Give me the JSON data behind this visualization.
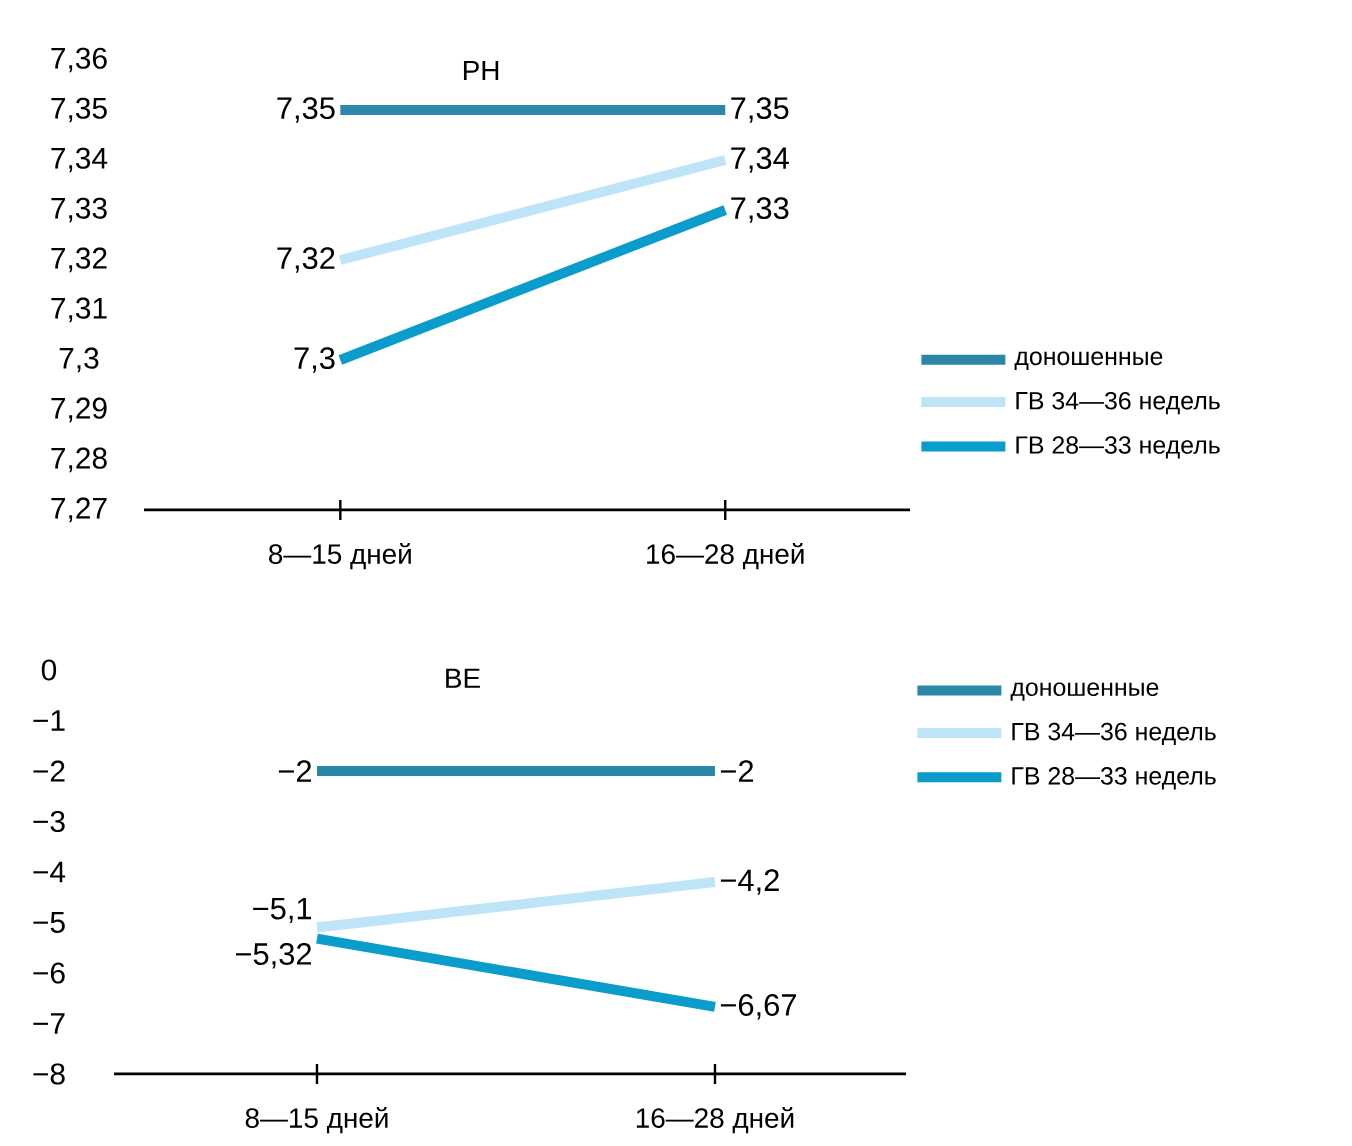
{
  "chart_data": [
    {
      "type": "line",
      "title": "PH",
      "categories": [
        "8—15 дней",
        "16—28 дней"
      ],
      "series": [
        {
          "name": "доношенные",
          "color": "#2b87a8",
          "values": [
            7.35,
            7.35
          ],
          "value_labels": [
            "7,35",
            "7,35"
          ]
        },
        {
          "name": "ГВ 34—36 недель",
          "color": "#bde4f7",
          "values": [
            7.32,
            7.34
          ],
          "value_labels": [
            "7,32",
            "7,34"
          ]
        },
        {
          "name": "ГВ 28—33 недель",
          "color": "#0a9dcc",
          "values": [
            7.3,
            7.33
          ],
          "value_labels": [
            "7,3",
            "7,33"
          ]
        }
      ],
      "ylim": [
        7.27,
        7.36
      ],
      "yticks": [
        {
          "value": 7.27,
          "label": "7,27"
        },
        {
          "value": 7.28,
          "label": "7,28"
        },
        {
          "value": 7.29,
          "label": "7,29"
        },
        {
          "value": 7.3,
          "label": "7,3"
        },
        {
          "value": 7.31,
          "label": "7,31"
        },
        {
          "value": 7.32,
          "label": "7,32"
        },
        {
          "value": 7.33,
          "label": "7,33"
        },
        {
          "value": 7.34,
          "label": "7,34"
        },
        {
          "value": 7.35,
          "label": "7,35"
        },
        {
          "value": 7.36,
          "label": "7,36"
        }
      ],
      "legend": "bottom right",
      "grid": false,
      "marker": "none"
    },
    {
      "type": "line",
      "title": "BE",
      "categories": [
        "8—15 дней",
        "16—28 дней"
      ],
      "series": [
        {
          "name": "доношенные",
          "color": "#2b87a8",
          "values": [
            -2,
            -2
          ],
          "value_labels": [
            "−2",
            "−2"
          ]
        },
        {
          "name": "ГВ 34—36 недель",
          "color": "#bde4f7",
          "values": [
            -5.1,
            -4.2
          ],
          "value_labels": [
            "−5,1",
            "−4,2"
          ]
        },
        {
          "name": "ГВ 28—33 недель",
          "color": "#0a9dcc",
          "values": [
            -5.32,
            -6.67
          ],
          "value_labels": [
            "−5,32",
            "−6,67"
          ]
        }
      ],
      "ylim": [
        -8,
        0
      ],
      "yticks": [
        {
          "value": 0,
          "label": "0"
        },
        {
          "value": -1,
          "label": "−1"
        },
        {
          "value": -2,
          "label": "−2"
        },
        {
          "value": -3,
          "label": "−3"
        },
        {
          "value": -4,
          "label": "−4"
        },
        {
          "value": -5,
          "label": "−5"
        },
        {
          "value": -6,
          "label": "−6"
        },
        {
          "value": -7,
          "label": "−7"
        },
        {
          "value": -8,
          "label": "−8"
        }
      ],
      "legend": "top right",
      "grid": false,
      "marker": "none"
    }
  ]
}
